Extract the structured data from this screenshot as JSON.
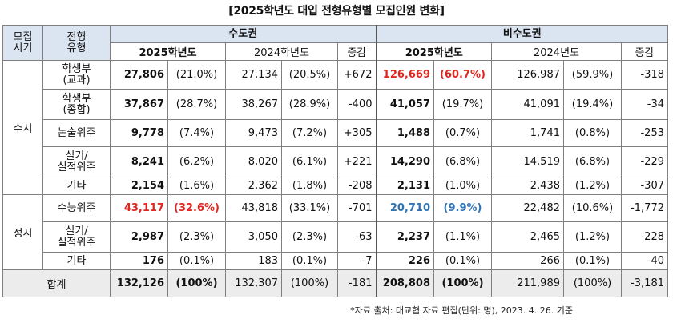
{
  "title": "[2025학년도 대입 전형유형별 모집인원 변화]",
  "header": {
    "period_label": "모집\n시기",
    "type_label": "전형\n유형",
    "capital": "수도권",
    "noncapital": "비수도권",
    "capital_years": [
      "2025학년도",
      "2024학년도",
      "증감"
    ],
    "noncapital_years": [
      "2025학년도",
      "2024년도",
      "증감"
    ]
  },
  "groups": {
    "susi": "수시",
    "jeongsi": "정시"
  },
  "rows": [
    {
      "type": "학생부\n(교과)",
      "c25": "27,806",
      "c25p": "(21.0%)",
      "c24": "27,134",
      "c24p": "(20.5%)",
      "cd": "+672",
      "n25": "126,669",
      "n25p": "(60.7%)",
      "n24": "126,987",
      "n24p": "(59.9%)",
      "nd": "-318"
    },
    {
      "type": "학생부\n(종합)",
      "c25": "37,867",
      "c25p": "(28.7%)",
      "c24": "38,267",
      "c24p": "(28.9%)",
      "cd": "-400",
      "n25": "41,057",
      "n25p": "(19.7%)",
      "n24": "41,091",
      "n24p": "(19.4%)",
      "nd": "-34"
    },
    {
      "type": "논술위주",
      "c25": "9,778",
      "c25p": "(7.4%)",
      "c24": "9,473",
      "c24p": "(7.2%)",
      "cd": "+305",
      "n25": "1,488",
      "n25p": "(0.7%)",
      "n24": "1,741",
      "n24p": "(0.8%)",
      "nd": "-253"
    },
    {
      "type": "실기/\n실적위주",
      "c25": "8,241",
      "c25p": "(6.2%)",
      "c24": "8,020",
      "c24p": "(6.1%)",
      "cd": "+221",
      "n25": "14,290",
      "n25p": "(6.8%)",
      "n24": "14,519",
      "n24p": "(6.8%)",
      "nd": "-229"
    },
    {
      "type": "기타",
      "c25": "2,154",
      "c25p": "(1.6%)",
      "c24": "2,362",
      "c24p": "(1.8%)",
      "cd": "-208",
      "n25": "2,131",
      "n25p": "(1.0%)",
      "n24": "2,438",
      "n24p": "(1.2%)",
      "nd": "-307"
    },
    {
      "type": "수능위주",
      "c25": "43,117",
      "c25p": "(32.6%)",
      "c24": "43,818",
      "c24p": "(33.1%)",
      "cd": "-701",
      "n25": "20,710",
      "n25p": "(9.9%)",
      "n24": "22,482",
      "n24p": "(10.6%)",
      "nd": "-1,772"
    },
    {
      "type": "실기/\n실적위주",
      "c25": "2,987",
      "c25p": "(2.3%)",
      "c24": "3,050",
      "c24p": "(2.3%)",
      "cd": "-63",
      "n25": "2,237",
      "n25p": "(1.1%)",
      "n24": "2,465",
      "n24p": "(1.2%)",
      "nd": "-228"
    },
    {
      "type": "기타",
      "c25": "176",
      "c25p": "(0.1%)",
      "c24": "183",
      "c24p": "(0.1%)",
      "cd": "-7",
      "n25": "226",
      "n25p": "(0.1%)",
      "n24": "266",
      "n24p": "(0.1%)",
      "nd": "-40"
    }
  ],
  "total": {
    "label": "합계",
    "c25": "132,126",
    "c25p": "(100%)",
    "c24": "132,307",
    "c24p": "(100%)",
    "cd": "-181",
    "n25": "208,808",
    "n25p": "(100%)",
    "n24": "211,989",
    "n24p": "(100%)",
    "nd": "-3,181"
  },
  "note": "*자료 출처: 대교협 자료 편집(단위: 명), 2023. 4. 26. 기준",
  "colors": {
    "highlight_red": "#e0261f",
    "highlight_blue": "#2e74b5",
    "header_bg": "#dbe4f1",
    "total_bg": "#ececec"
  }
}
